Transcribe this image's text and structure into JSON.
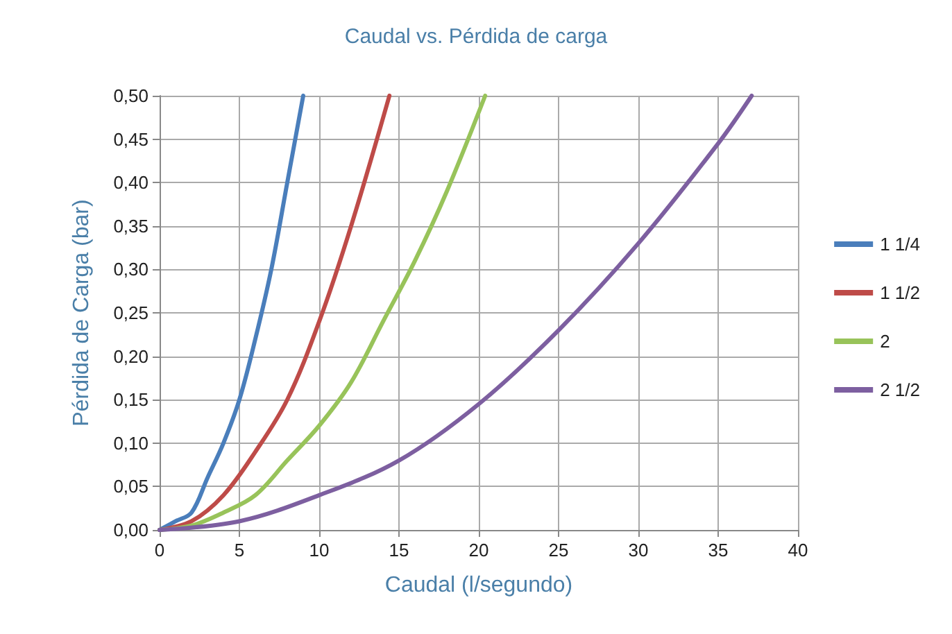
{
  "chart_data": {
    "type": "line",
    "title": "Caudal vs. Pérdida de carga",
    "xlabel": "Caudal (l/segundo)",
    "ylabel": "Pérdida de Carga (bar)",
    "series": [
      {
        "name": "1 1/4",
        "color": "#4a7ebb",
        "x": [
          0,
          1,
          2,
          3,
          4,
          5,
          6,
          7,
          8,
          9
        ],
        "values": [
          0,
          0.01,
          0.02,
          0.06,
          0.1,
          0.15,
          0.22,
          0.3,
          0.4,
          0.5
        ]
      },
      {
        "name": "1 1/2",
        "color": "#be4b48",
        "x": [
          0,
          2,
          4,
          6,
          8,
          10,
          12,
          14.4
        ],
        "values": [
          0,
          0.01,
          0.04,
          0.09,
          0.15,
          0.24,
          0.35,
          0.5
        ]
      },
      {
        "name": "2",
        "color": "#98c35a",
        "x": [
          0,
          2,
          4,
          6,
          8,
          10,
          12,
          14,
          16,
          18,
          20.4
        ],
        "values": [
          0,
          0.005,
          0.02,
          0.04,
          0.08,
          0.12,
          0.17,
          0.24,
          0.31,
          0.39,
          0.5
        ]
      },
      {
        "name": "2 1/2",
        "color": "#7d5fa0",
        "x": [
          0,
          5,
          10,
          15,
          20,
          25,
          30,
          35,
          37.1
        ],
        "values": [
          0,
          0.01,
          0.04,
          0.08,
          0.145,
          0.23,
          0.33,
          0.445,
          0.5
        ]
      }
    ],
    "xlim": [
      0,
      40
    ],
    "xticks": [
      0,
      5,
      10,
      15,
      20,
      25,
      30,
      35,
      40
    ],
    "ylim": [
      0,
      0.5
    ],
    "yticks": [
      {
        "value": 0,
        "label": "0,00"
      },
      {
        "value": 0.05,
        "label": "0,05"
      },
      {
        "value": 0.1,
        "label": "0,10"
      },
      {
        "value": 0.15,
        "label": "0,15"
      },
      {
        "value": 0.2,
        "label": "0,20"
      },
      {
        "value": 0.25,
        "label": "0,25"
      },
      {
        "value": 0.3,
        "label": "0,30"
      },
      {
        "value": 0.35,
        "label": "0,35"
      },
      {
        "value": 0.4,
        "label": "0,40"
      },
      {
        "value": 0.45,
        "label": "0,45"
      },
      {
        "value": 0.5,
        "label": "0,50"
      }
    ],
    "grid": true,
    "legend": "right",
    "marker": "none",
    "line_style": "solid"
  }
}
